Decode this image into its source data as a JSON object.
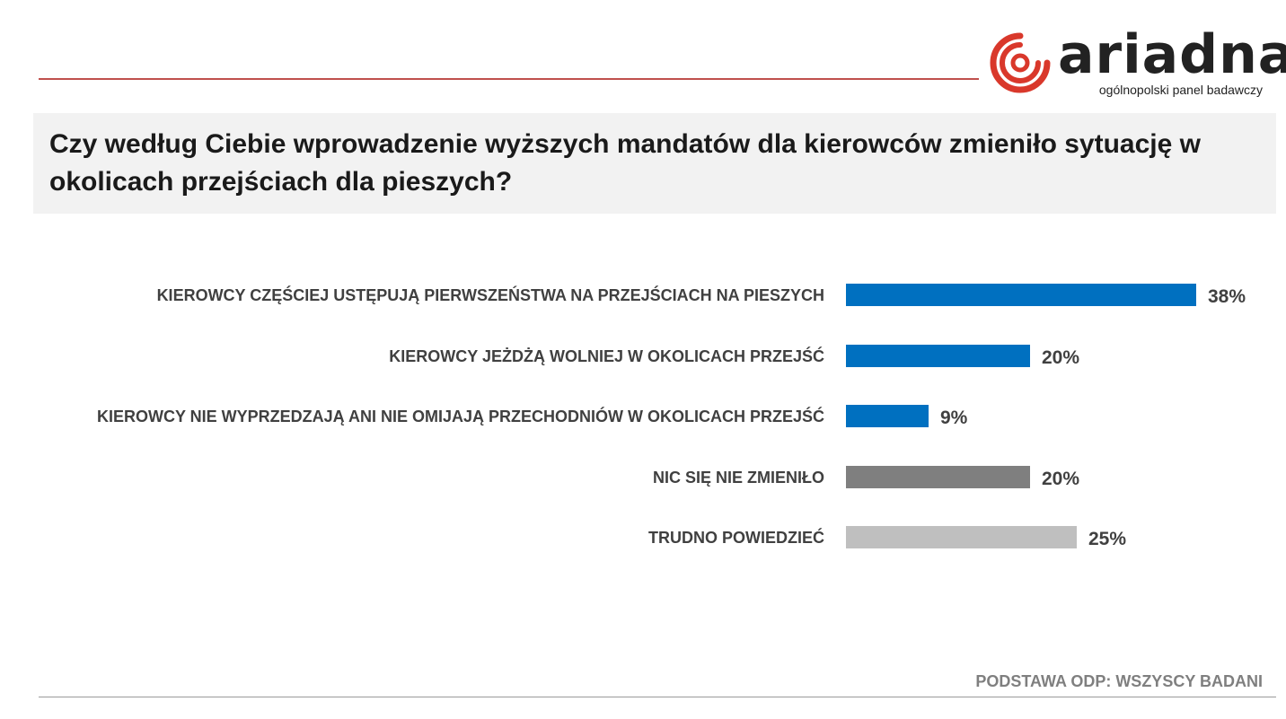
{
  "logo": {
    "wordmark": "ariadna",
    "tagline": "ogólnopolski panel badawczy"
  },
  "question": "Czy według Ciebie wprowadzenie wyższych mandatów dla kierowców zmieniło sytuację w okolicach przejściach dla pieszych?",
  "footnote": "PODSTAWA ODP: WSZYSCY BADANI",
  "colors": {
    "accent_rule": "#c0504d",
    "logo_red": "#d9382b",
    "bar_blue": "#0070c0",
    "bar_dark_gray": "#7f7f7f",
    "bar_light_gray": "#bfbfbf"
  },
  "chart_data": {
    "type": "bar",
    "orientation": "horizontal",
    "title": "",
    "xlabel": "",
    "ylabel": "",
    "xlim": [
      0,
      38
    ],
    "grid": false,
    "legend": "none",
    "categories": [
      "KIEROWCY CZĘŚCIEJ USTĘPUJĄ PIERWSZEŃSTWA NA PRZEJŚCIACH NA PIESZYCH",
      "KIEROWCY JEŻDŻĄ WOLNIEJ W OKOLICACH PRZEJŚĆ",
      "KIEROWCY NIE WYPRZEDZAJĄ ANI NIE OMIJAJĄ PRZECHODNIÓW W OKOLICACH PRZEJŚĆ",
      "NIC SIĘ NIE ZMIENIŁO",
      "TRUDNO POWIEDZIEĆ"
    ],
    "values": [
      38,
      20,
      9,
      20,
      25
    ],
    "value_labels": [
      "38%",
      "20%",
      "9%",
      "20%",
      "25%"
    ],
    "bar_colors": [
      "#0070c0",
      "#0070c0",
      "#0070c0",
      "#7f7f7f",
      "#bfbfbf"
    ]
  }
}
